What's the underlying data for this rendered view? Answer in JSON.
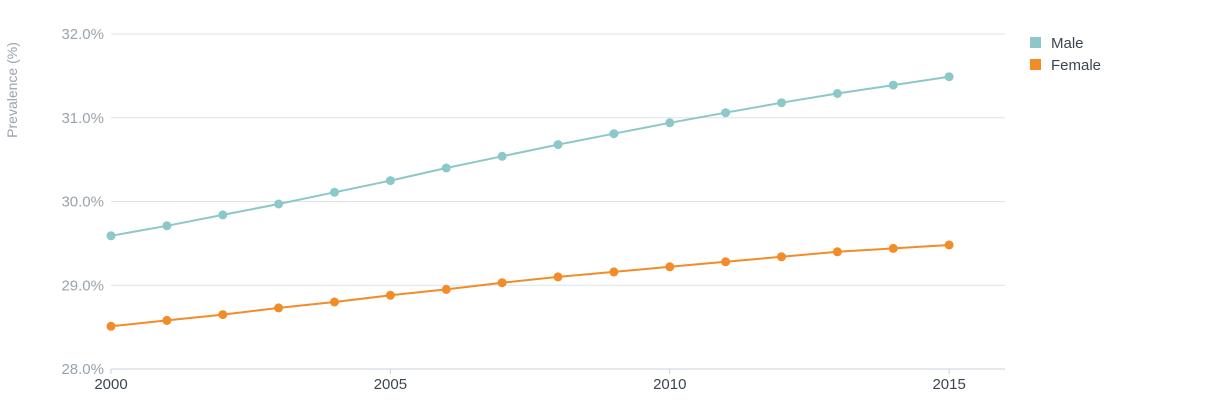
{
  "chart_data": {
    "type": "line",
    "title": "",
    "xlabel": "",
    "ylabel": "Prevalence (%)",
    "x": [
      2000,
      2001,
      2002,
      2003,
      2004,
      2005,
      2006,
      2007,
      2008,
      2009,
      2010,
      2011,
      2012,
      2013,
      2014,
      2015
    ],
    "x_ticks": [
      "2000",
      "2005",
      "2010",
      "2015"
    ],
    "xlim": [
      2000,
      2016
    ],
    "ylim": [
      28.0,
      32.0
    ],
    "y_ticks": [
      "28.0%",
      "29.0%",
      "30.0%",
      "31.0%",
      "32.0%"
    ],
    "grid": true,
    "legend_position": "top-right",
    "series": [
      {
        "name": "Male",
        "color": "#8cc8c8",
        "values": [
          29.59,
          29.71,
          29.84,
          29.97,
          30.11,
          30.25,
          30.4,
          30.54,
          30.68,
          30.81,
          30.94,
          31.06,
          31.18,
          31.29,
          31.39,
          31.49
        ]
      },
      {
        "name": "Female",
        "color": "#f28c28",
        "values": [
          28.51,
          28.58,
          28.65,
          28.73,
          28.8,
          28.88,
          28.95,
          29.03,
          29.1,
          29.16,
          29.22,
          29.28,
          29.34,
          29.4,
          29.44,
          29.48
        ]
      }
    ]
  }
}
